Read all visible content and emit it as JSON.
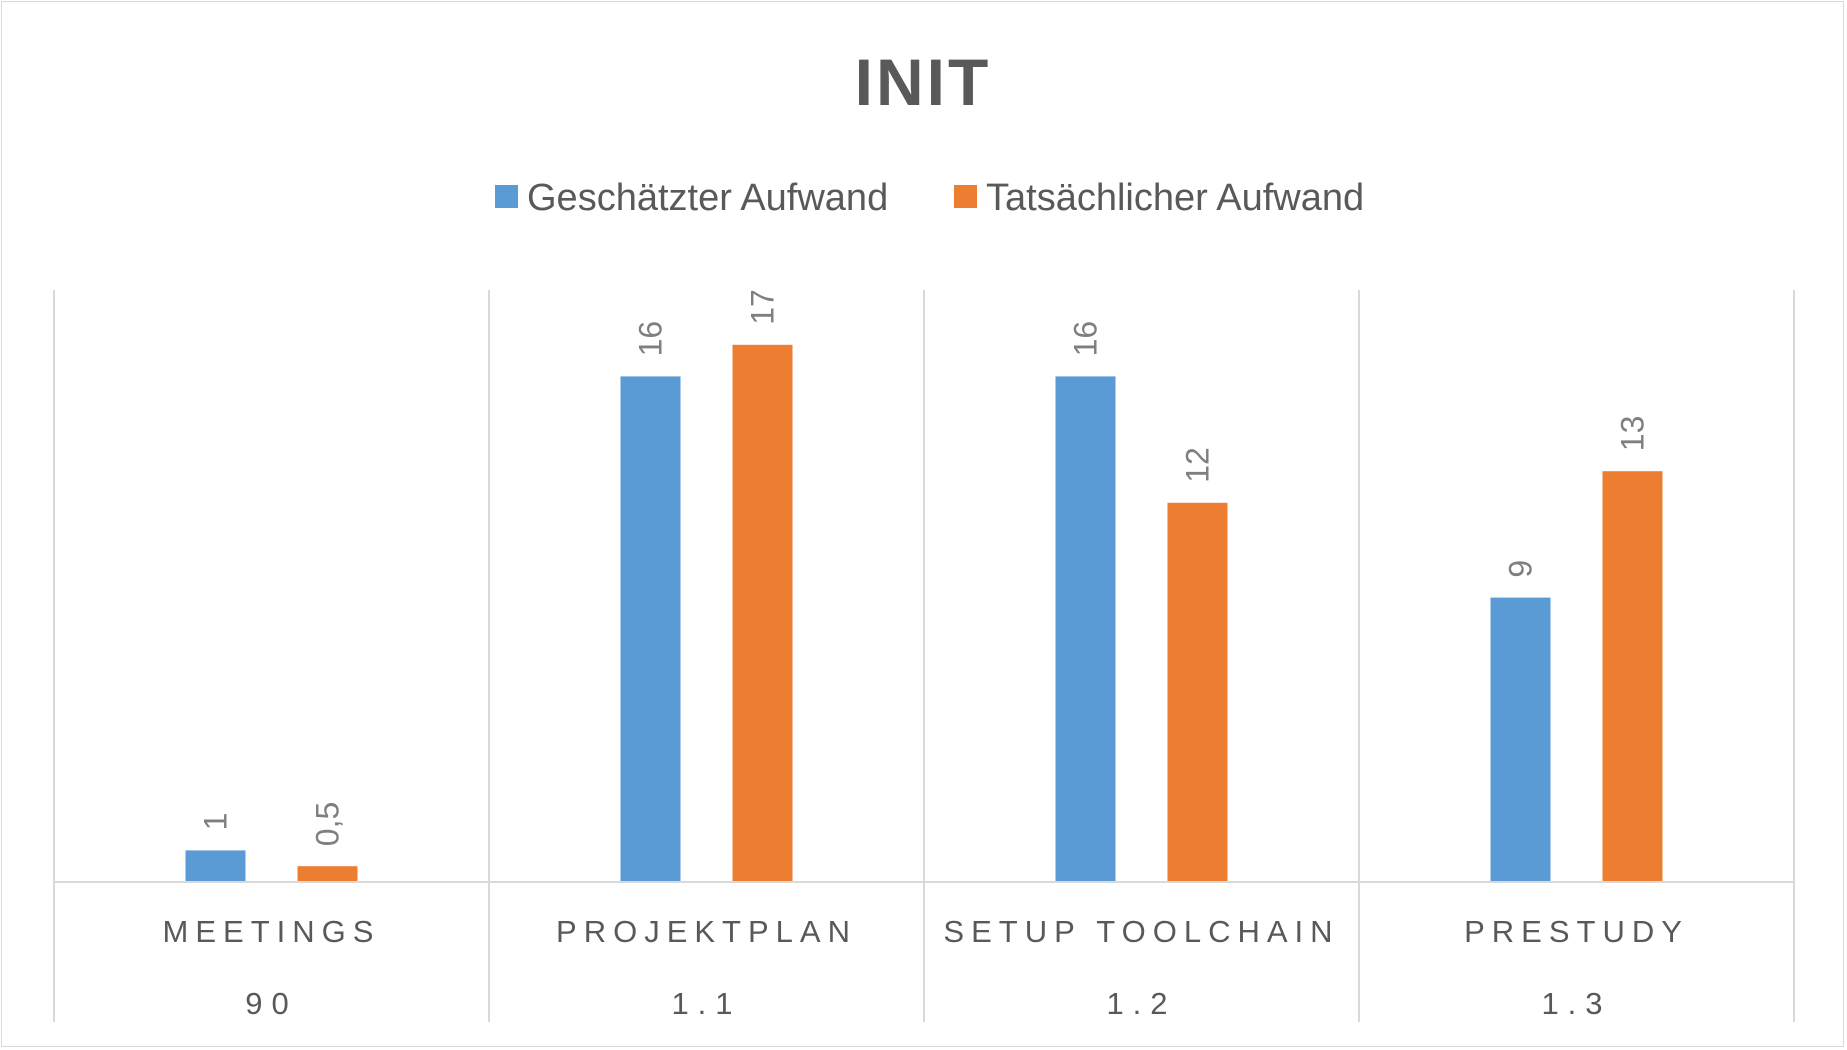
{
  "chart_data": {
    "type": "bar",
    "title": "INIT",
    "categories": [
      "MEETINGS",
      "PROJEKTPLAN",
      "SETUP TOOLCHAIN",
      "PRESTUDY"
    ],
    "category_codes": [
      "90",
      "1.1",
      "1.2",
      "1.3"
    ],
    "series": [
      {
        "name": "Geschätzter Aufwand",
        "values": [
          1,
          16,
          16,
          9
        ],
        "labels": [
          "1",
          "16",
          "16",
          "9"
        ],
        "color": "#5b9bd5"
      },
      {
        "name": "Tatsächlicher Aufwand",
        "values": [
          0.5,
          17,
          12,
          13
        ],
        "labels": [
          "0,5",
          "17",
          "12",
          "13"
        ],
        "color": "#ed7d31"
      }
    ],
    "ylim": [
      0,
      18
    ],
    "legend_position": "top-center",
    "grid": false,
    "data_labels_rotated": true
  }
}
